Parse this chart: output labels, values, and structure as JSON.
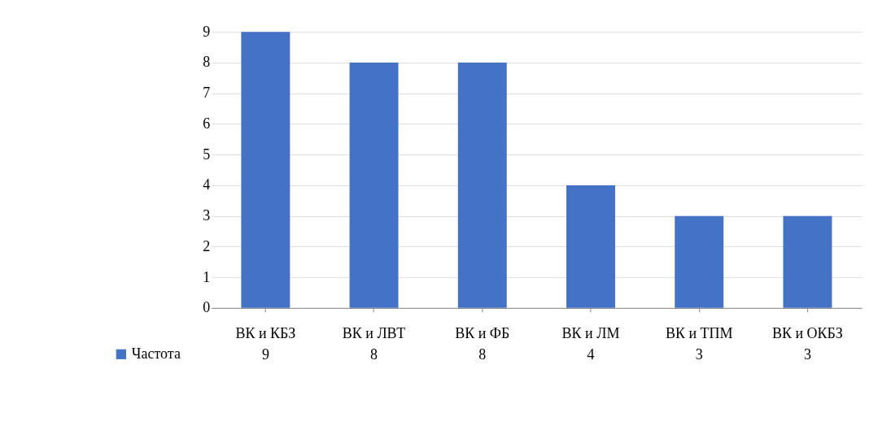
{
  "chart_data": {
    "type": "bar",
    "categories": [
      "ВК и КБЗ",
      "ВК и ЛВТ",
      "ВК и ФБ",
      "ВК и ЛМ",
      "ВК и ТПМ",
      "ВК и ОКБЗ"
    ],
    "series": [
      {
        "name": "Частота",
        "color": "#4472c4",
        "values": [
          9,
          8,
          8,
          4,
          3,
          3
        ]
      }
    ],
    "ylim": [
      0,
      9
    ],
    "yticks": [
      0,
      1,
      2,
      3,
      4,
      5,
      6,
      7,
      8,
      9
    ],
    "grid": "y",
    "legend": "bottom left",
    "data_labels": true
  }
}
